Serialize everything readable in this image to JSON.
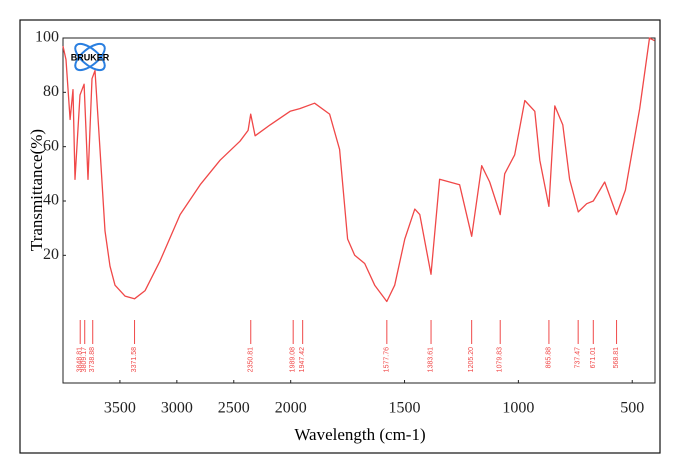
{
  "chart_data": {
    "type": "line",
    "logo": "BRUKER",
    "xlabel": "Wavelength (cm-1)",
    "ylabel": "Transmittance(%)",
    "xlim": [
      4000,
      400
    ],
    "x_scale_break": 2000,
    "ylim": [
      -27,
      100
    ],
    "xticks": [
      3500,
      3000,
      2500,
      2000,
      1500,
      1000,
      500
    ],
    "yticks": [
      20,
      40,
      60,
      80,
      100
    ],
    "color": "#f04848",
    "x": [
      4000,
      3974,
      3938,
      3912,
      3895,
      3851,
      3815,
      3780,
      3745,
      3719,
      3675,
      3631,
      3587,
      3543,
      3455,
      3372,
      3279,
      3147,
      2971,
      2795,
      2620,
      2445,
      2374,
      2351,
      2313,
      2181,
      2005,
      1960,
      1895,
      1829,
      1785,
      1750,
      1719,
      1675,
      1631,
      1578,
      1543,
      1499,
      1455,
      1433,
      1384,
      1346,
      1302,
      1258,
      1205,
      1161,
      1126,
      1080,
      1060,
      1016,
      972,
      928,
      906,
      866,
      840,
      805,
      775,
      737,
      700,
      671,
      621,
      569,
      530,
      467,
      424,
      402
    ],
    "values": [
      97,
      92,
      70,
      81,
      48,
      79,
      83,
      48,
      85,
      88,
      59,
      29,
      16,
      9,
      5,
      4,
      7,
      18,
      35,
      46,
      55,
      62,
      66,
      72,
      64,
      68,
      73,
      74,
      76,
      72,
      59,
      26,
      20,
      17,
      9,
      3,
      9,
      26,
      37,
      35,
      13,
      48,
      47,
      46,
      27,
      53,
      47,
      35,
      50,
      57,
      77,
      73,
      55,
      38,
      75,
      68,
      48,
      36,
      39,
      40,
      47,
      35,
      44,
      74,
      100,
      99
    ],
    "peaks": [
      3848.81,
      3809.17,
      3738.88,
      3371.58,
      2350.81,
      1989.08,
      1947.42,
      1577.76,
      1383.61,
      1205.2,
      1079.83,
      865.88,
      737.47,
      671.01,
      568.81
    ],
    "peak_labels": [
      "3848.81",
      "3809.17",
      "3738.88",
      "3371.58",
      "2350.81",
      "1989.08",
      "1947.42",
      "1577.76",
      "1383.61",
      "1205.20",
      "1079.83",
      "865.88",
      "737.47",
      "671.01",
      "568.81"
    ]
  }
}
